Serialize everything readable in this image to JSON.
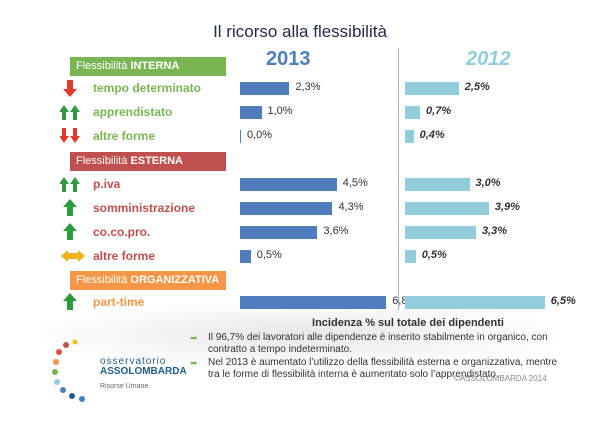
{
  "title": "Il ricorso alla flessibilità",
  "year_a": "2013",
  "year_b": "2012",
  "sections": {
    "interna": {
      "prefix": "Flessibilità ",
      "strong": "INTERNA"
    },
    "esterna": {
      "prefix": "Flessibilità ",
      "strong": "ESTERNA"
    },
    "organizzativa": {
      "prefix": "Flessibilità ",
      "strong": "ORGANIZZATIVA"
    }
  },
  "axis_title": "Incidenza % sul totale dei dipendenti",
  "notes": [
    "Il 96,7% dei lavoratori alle dipendenze è inserito stabilmente in organico, con contratto a tempo indeterminato.",
    "Nel 2013 è aumentato l’utilizzo della flessibilità esterna e organizzativa, mentre tra le forme di flessibilità interna è aumentato solo l’apprendistato."
  ],
  "copyright": "©ASSOLOMBARDA 2014",
  "logo": {
    "line1": "osservatorio",
    "line2": "ASSOLOMBARDA",
    "sub": "Risorse Umane"
  },
  "colors": {
    "bar_2013": "#4f7dbd",
    "bar_2012": "#92cddc",
    "interna": "#7ab554",
    "esterna": "#c0504d",
    "organizzativa": "#f79646"
  },
  "chart_data": {
    "type": "bar",
    "orientation": "horizontal",
    "xlabel": "Incidenza % sul totale dei dipendenti",
    "categories": [
      "tempo determinato",
      "apprendistato",
      "altre forme",
      "p.iva",
      "somministrazione",
      "co.co.pro.",
      "altre forme",
      "part-time"
    ],
    "groups": [
      "Flessibilità INTERNA",
      "Flessibilità INTERNA",
      "Flessibilità INTERNA",
      "Flessibilità ESTERNA",
      "Flessibilità ESTERNA",
      "Flessibilità ESTERNA",
      "Flessibilità ESTERNA",
      "Flessibilità ORGANIZZATIVA"
    ],
    "icons": [
      "arrow-down-red",
      "double-arrow-up-green",
      "double-arrow-down-red",
      "double-arrow-up-green",
      "arrow-up-green",
      "arrow-up-green",
      "arrow-left-right-orange",
      "arrow-up-green"
    ],
    "series": [
      {
        "name": "2013",
        "values": [
          2.3,
          1.0,
          0.0,
          4.5,
          4.3,
          3.6,
          0.5,
          6.8
        ],
        "labels": [
          "2,3%",
          "1,0%",
          "0,0%",
          "4,5%",
          "4,3%",
          "3,6%",
          "0,5%",
          "6,8%"
        ]
      },
      {
        "name": "2012",
        "values": [
          2.5,
          0.7,
          0.4,
          3.0,
          3.9,
          3.3,
          0.5,
          6.5
        ],
        "labels": [
          "2,5%",
          "0,7%",
          "0,4%",
          "3,0%",
          "3,9%",
          "3,3%",
          "0,5%",
          "6,5%"
        ]
      }
    ]
  }
}
